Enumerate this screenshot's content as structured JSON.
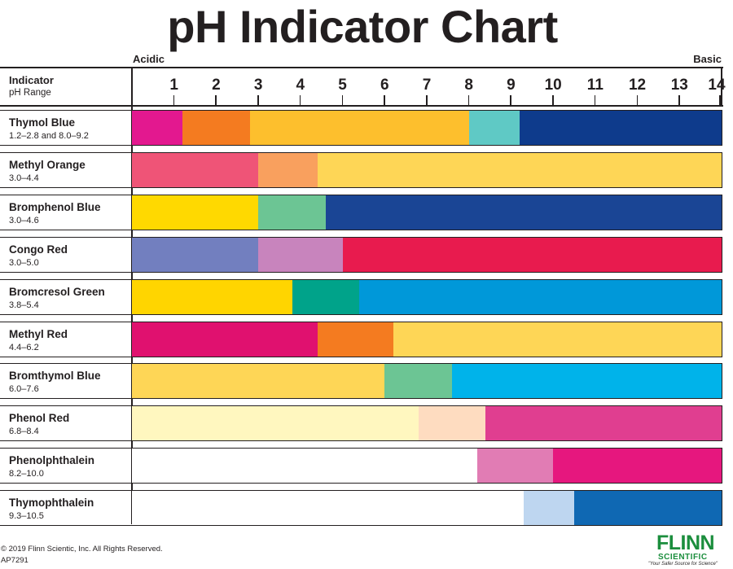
{
  "header": {
    "title": "pH Indicator Chart",
    "acidic_label": "Acidic",
    "basic_label": "Basic",
    "indicator_header": "Indicator",
    "range_header": "pH Range"
  },
  "chart_data": {
    "type": "bar",
    "title": "pH Indicator Chart",
    "xlabel": "",
    "xlim": [
      0,
      14
    ],
    "x_ticks": [
      1,
      2,
      3,
      4,
      5,
      6,
      7,
      8,
      9,
      10,
      11,
      12,
      13,
      14
    ],
    "grid": false,
    "indicators": [
      {
        "name": "Thymol Blue",
        "range": "1.2–2.8 and 8.0–9.2",
        "segments": [
          {
            "from": 0,
            "to": 1.2,
            "color": "#e3188f"
          },
          {
            "from": 1.2,
            "to": 2.8,
            "color": "#f47b20"
          },
          {
            "from": 2.8,
            "to": 8.0,
            "color": "#fdbf2d"
          },
          {
            "from": 8.0,
            "to": 9.2,
            "color": "#5fc9c5"
          },
          {
            "from": 9.2,
            "to": 14,
            "color": "#0e3b8c"
          }
        ]
      },
      {
        "name": "Methyl Orange",
        "range": "3.0–4.4",
        "segments": [
          {
            "from": 0,
            "to": 3.0,
            "color": "#ef5477"
          },
          {
            "from": 3.0,
            "to": 4.4,
            "color": "#f9a05e"
          },
          {
            "from": 4.4,
            "to": 14,
            "color": "#fed656"
          }
        ]
      },
      {
        "name": "Bromphenol Blue",
        "range": "3.0–4.6",
        "segments": [
          {
            "from": 0,
            "to": 3.0,
            "color": "#ffd900"
          },
          {
            "from": 3.0,
            "to": 4.6,
            "color": "#6cc594"
          },
          {
            "from": 4.6,
            "to": 14,
            "color": "#1a4595"
          }
        ]
      },
      {
        "name": "Congo Red",
        "range": "3.0–5.0",
        "segments": [
          {
            "from": 0,
            "to": 3.0,
            "color": "#727fbf"
          },
          {
            "from": 3.0,
            "to": 5.0,
            "color": "#c884bd"
          },
          {
            "from": 5.0,
            "to": 14,
            "color": "#e81b4e"
          }
        ]
      },
      {
        "name": "Bromcresol Green",
        "range": "3.8–5.4",
        "segments": [
          {
            "from": 0,
            "to": 3.8,
            "color": "#ffd500"
          },
          {
            "from": 3.8,
            "to": 5.4,
            "color": "#00a38a"
          },
          {
            "from": 5.4,
            "to": 14,
            "color": "#0098d9"
          }
        ]
      },
      {
        "name": "Methyl Red",
        "range": "4.4–6.2",
        "segments": [
          {
            "from": 0,
            "to": 4.4,
            "color": "#e0116f"
          },
          {
            "from": 4.4,
            "to": 6.2,
            "color": "#f47b20"
          },
          {
            "from": 6.2,
            "to": 14,
            "color": "#fed656"
          }
        ]
      },
      {
        "name": "Bromthymol Blue",
        "range": "6.0–7.6",
        "segments": [
          {
            "from": 0,
            "to": 6.0,
            "color": "#fed656"
          },
          {
            "from": 6.0,
            "to": 7.6,
            "color": "#6cc594"
          },
          {
            "from": 7.6,
            "to": 14,
            "color": "#00b3ea"
          }
        ]
      },
      {
        "name": "Phenol Red",
        "range": "6.8–8.4",
        "segments": [
          {
            "from": 0,
            "to": 6.8,
            "color": "#fff7bf"
          },
          {
            "from": 6.8,
            "to": 8.4,
            "color": "#fedcc0"
          },
          {
            "from": 8.4,
            "to": 14,
            "color": "#e03e90"
          }
        ]
      },
      {
        "name": "Phenolphthalein",
        "range": "8.2–10.0",
        "segments": [
          {
            "from": 0,
            "to": 8.2,
            "color": "#ffffff"
          },
          {
            "from": 8.2,
            "to": 10.0,
            "color": "#e17cb4"
          },
          {
            "from": 10.0,
            "to": 14,
            "color": "#e6177e"
          }
        ]
      },
      {
        "name": "Thymophthalein",
        "range": "9.3–10.5",
        "segments": [
          {
            "from": 0,
            "to": 9.3,
            "color": "#ffffff"
          },
          {
            "from": 9.3,
            "to": 10.5,
            "color": "#bed6f0"
          },
          {
            "from": 10.5,
            "to": 14,
            "color": "#0f68b3"
          }
        ]
      }
    ]
  },
  "footer": {
    "copyright": "© 2019 Flinn Scientic, Inc. All Rights Reserved.",
    "code": "AP7291",
    "logo_main": "FLINN",
    "logo_sub": "SCIENTIFIC",
    "logo_tagline": "\"Your Safer Source for Science\""
  },
  "colors": {
    "line": "#231f20",
    "brand_green": "#1b8e3d"
  }
}
